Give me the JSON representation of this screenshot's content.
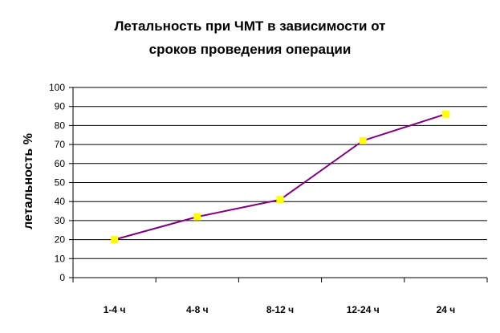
{
  "chart_data": {
    "type": "line",
    "title_lines": [
      "Летальность при ЧМТ в зависимости от",
      "сроков проведения операции"
    ],
    "xlabel": "",
    "ylabel": "летальность %",
    "categories": [
      "1-4 ч",
      "4-8 ч",
      "8-12 ч",
      "12-24  ч",
      "24 ч"
    ],
    "series": [
      {
        "values": [
          20,
          32,
          41,
          72,
          86
        ]
      }
    ],
    "ylim": [
      0,
      100
    ],
    "ytick_step": 10,
    "yticks": [
      "0",
      "10",
      "20",
      "30",
      "40",
      "50",
      "60",
      "70",
      "80",
      "90",
      "100"
    ],
    "grid": true,
    "line_color": "#7f007f",
    "marker_color": "#ffff00",
    "grid_color": "#000000"
  }
}
